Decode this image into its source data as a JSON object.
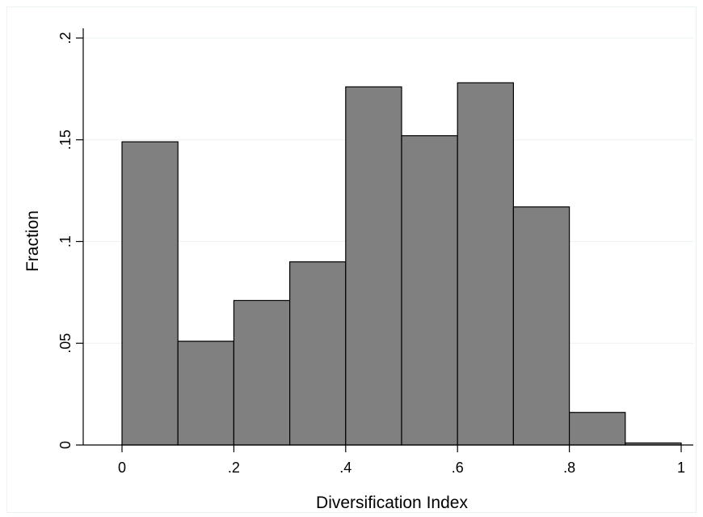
{
  "chart_data": {
    "type": "bar",
    "subtype": "histogram",
    "xlabel": "Diversification Index",
    "ylabel": "Fraction",
    "bins": [
      {
        "start": 0.0,
        "end": 0.1,
        "value": 0.149
      },
      {
        "start": 0.1,
        "end": 0.2,
        "value": 0.051
      },
      {
        "start": 0.2,
        "end": 0.3,
        "value": 0.071
      },
      {
        "start": 0.3,
        "end": 0.4,
        "value": 0.09
      },
      {
        "start": 0.4,
        "end": 0.5,
        "value": 0.176
      },
      {
        "start": 0.5,
        "end": 0.6,
        "value": 0.152
      },
      {
        "start": 0.6,
        "end": 0.7,
        "value": 0.178
      },
      {
        "start": 0.7,
        "end": 0.8,
        "value": 0.117
      },
      {
        "start": 0.8,
        "end": 0.9,
        "value": 0.016
      },
      {
        "start": 0.9,
        "end": 1.0,
        "value": 0.001
      }
    ],
    "xlim": [
      -0.07,
      1.03
    ],
    "ylim": [
      0,
      0.205
    ],
    "x_ticks": [
      {
        "value": 0,
        "label": "0"
      },
      {
        "value": 0.2,
        "label": ".2"
      },
      {
        "value": 0.4,
        "label": ".4"
      },
      {
        "value": 0.6,
        "label": ".6"
      },
      {
        "value": 0.8,
        "label": ".8"
      },
      {
        "value": 1.0,
        "label": "1"
      }
    ],
    "y_ticks": [
      {
        "value": 0,
        "label": "0"
      },
      {
        "value": 0.05,
        "label": ".05"
      },
      {
        "value": 0.1,
        "label": ".1"
      },
      {
        "value": 0.15,
        "label": ".15"
      },
      {
        "value": 0.2,
        "label": ".2"
      }
    ],
    "grid": true,
    "colors": {
      "bar_fill": "#808080",
      "bar_stroke": "#000000",
      "grid": "#eaf2f3",
      "axis": "#000000",
      "background": "#ffffff"
    }
  }
}
